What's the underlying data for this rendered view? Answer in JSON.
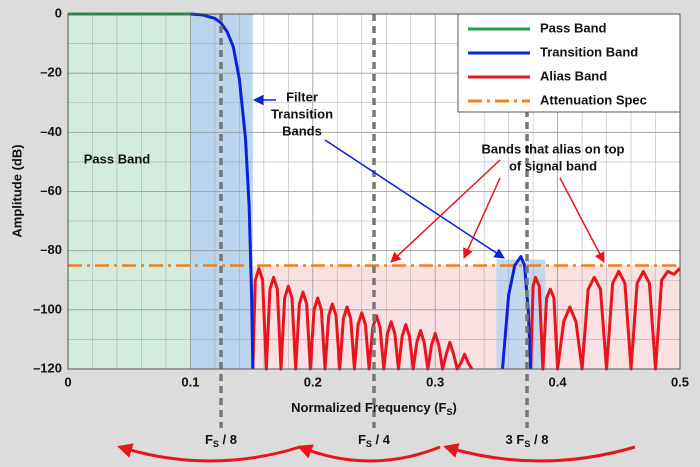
{
  "chart_data": {
    "type": "line",
    "x_label_parts": [
      "Normalized Frequency (F",
      "S",
      ")"
    ],
    "y_label": "Amplitude (dB)",
    "xlim": [
      0,
      0.5
    ],
    "ylim": [
      -120,
      0
    ],
    "xticks": [
      0,
      0.1,
      0.2,
      0.3,
      0.4,
      0.5
    ],
    "yticks": [
      0,
      {
        "value": -20,
        "label": "–20"
      },
      {
        "value": -40,
        "label": "–40"
      },
      {
        "value": -60,
        "label": "–60"
      },
      {
        "value": -80,
        "label": "–80"
      },
      {
        "value": -100,
        "label": "–100"
      },
      {
        "value": -120,
        "label": "–120"
      }
    ],
    "x_minor_grid": [
      0.02,
      0.04,
      0.06,
      0.08,
      0.12,
      0.14,
      0.16,
      0.18,
      0.22,
      0.24,
      0.26,
      0.28,
      0.32,
      0.34,
      0.36,
      0.38,
      0.42,
      0.44,
      0.46,
      0.48
    ],
    "y_minor_grid": [
      -10,
      -30,
      -50,
      -70,
      -90,
      -110
    ],
    "grid": true,
    "legend": "upper right",
    "regions": [
      {
        "x": [
          0,
          0.1
        ],
        "y": [
          -120,
          0
        ],
        "color": "#d3ecdf"
      },
      {
        "x": [
          0.1,
          0.151
        ],
        "y": [
          -120,
          0
        ],
        "color": "#bcd5ee"
      },
      {
        "x": [
          0.151,
          0.5
        ],
        "y": [
          -120,
          -85
        ],
        "color": "#f9e1e1"
      },
      {
        "x": [
          0.35,
          0.39
        ],
        "y": [
          -120,
          -83
        ],
        "color": "#c3d8ef"
      }
    ],
    "series": [
      {
        "name": "Pass Band",
        "color": "#1f9e4c",
        "dash": "none",
        "x": [
          0,
          0.1
        ],
        "values": [
          0,
          0
        ]
      },
      {
        "name": "Transition Band",
        "color": "#0b22d8",
        "dash": "none",
        "x": [
          0.1,
          0.11,
          0.12,
          0.125,
          0.13,
          0.135,
          0.14,
          0.145,
          0.148,
          0.15,
          0.151,
          0.2,
          0.355,
          0.36,
          0.365,
          0.37,
          0.373,
          0.376,
          0.378
        ],
        "values": [
          0,
          -0.3,
          -1.5,
          -3,
          -6,
          -11,
          -22,
          -42,
          -65,
          -95,
          -120,
          null,
          -120,
          -95,
          -85,
          -82,
          -85,
          -100,
          -120
        ]
      },
      {
        "name": "Alias Band",
        "color": "#e8141e",
        "dash": "none",
        "x": [
          0.151,
          0.153,
          0.156,
          0.159,
          0.162,
          0.165,
          0.168,
          0.171,
          0.174,
          0.177,
          0.18,
          0.183,
          0.186,
          0.189,
          0.192,
          0.195,
          0.198,
          0.201,
          0.204,
          0.207,
          0.21,
          0.213,
          0.216,
          0.219,
          0.222,
          0.225,
          0.228,
          0.231,
          0.234,
          0.237,
          0.24,
          0.243,
          0.246,
          0.249,
          0.252,
          0.255,
          0.258,
          0.261,
          0.264,
          0.267,
          0.27,
          0.273,
          0.276,
          0.279,
          0.282,
          0.285,
          0.288,
          0.291,
          0.294,
          0.297,
          0.3,
          0.303,
          0.306,
          0.309,
          0.312,
          0.315,
          0.318,
          0.321,
          0.324,
          0.327,
          0.33,
          0.35,
          0.378,
          0.38,
          0.382,
          0.385,
          0.388,
          0.391,
          0.394,
          0.397,
          0.4,
          0.405,
          0.41,
          0.415,
          0.42,
          0.425,
          0.43,
          0.435,
          0.44,
          0.445,
          0.45,
          0.455,
          0.46,
          0.465,
          0.47,
          0.475,
          0.48,
          0.485,
          0.49,
          0.495,
          0.5
        ],
        "values": [
          -120,
          -90,
          -86,
          -90,
          -120,
          -93,
          -89,
          -93,
          -120,
          -96,
          -92,
          -96,
          -120,
          -98,
          -94,
          -98,
          -120,
          -100,
          -96,
          -100,
          -120,
          -102,
          -98,
          -102,
          -120,
          -103,
          -99,
          -103,
          -120,
          -105,
          -101,
          -105,
          -120,
          -106,
          -102,
          -106,
          -120,
          -108,
          -104,
          -108,
          -120,
          -109,
          -105,
          -109,
          -120,
          -111,
          -107,
          -111,
          -120,
          -112,
          -108,
          -112,
          -120,
          -115,
          -111,
          -115,
          -120,
          -118,
          -115,
          -118,
          -120,
          null,
          -120,
          -92,
          -89,
          -92,
          -120,
          -96,
          -93,
          -96,
          -120,
          -104,
          -99,
          -104,
          -120,
          -93,
          -89,
          -93,
          -120,
          -91,
          -87,
          -91,
          -120,
          -91,
          -87,
          -91,
          -120,
          -90,
          -87,
          -88,
          -86
        ]
      },
      {
        "name": "Attenuation Spec",
        "color": "#f0801e",
        "dash": "14 5 3 5",
        "x": [
          0,
          0.5
        ],
        "values": [
          -85,
          -85
        ]
      }
    ],
    "markers": [
      {
        "x": 0.125,
        "label_parts": [
          "F",
          "S",
          " / 8"
        ]
      },
      {
        "x": 0.25,
        "label_parts": [
          "F",
          "S",
          " / 4"
        ]
      },
      {
        "x": 0.375,
        "label_parts": [
          "3 F",
          "S",
          " / 8"
        ]
      }
    ],
    "pass_band_label": "Pass Band",
    "transition_note": [
      "Filter",
      "Transition",
      "Bands"
    ],
    "alias_note": [
      "Bands that alias on top",
      "of signal band"
    ]
  }
}
